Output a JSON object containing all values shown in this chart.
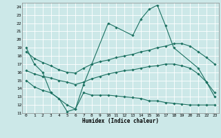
{
  "xlabel": "Humidex (Indice chaleur)",
  "bg_color": "#cce8e8",
  "line_color": "#1a7060",
  "grid_color": "#ffffff",
  "xlim": [
    -0.5,
    23.5
  ],
  "ylim": [
    11,
    24.5
  ],
  "yticks": [
    11,
    12,
    13,
    14,
    15,
    16,
    17,
    18,
    19,
    20,
    21,
    22,
    23,
    24
  ],
  "xticks": [
    0,
    1,
    2,
    3,
    4,
    5,
    6,
    7,
    8,
    9,
    10,
    11,
    12,
    13,
    14,
    15,
    16,
    17,
    18,
    19,
    20,
    21,
    22,
    23
  ],
  "lines": [
    {
      "x": [
        0,
        1,
        2,
        3,
        5,
        6,
        7,
        10,
        11,
        13,
        14,
        15,
        16,
        17,
        18,
        21,
        22,
        23
      ],
      "y": [
        19,
        17,
        16,
        13.5,
        12,
        11.5,
        14.5,
        22,
        21.5,
        20.5,
        22.5,
        23.7,
        24.2,
        21.7,
        19.0,
        16.5,
        14.8,
        13.0
      ]
    },
    {
      "x": [
        0,
        1,
        2,
        3,
        4,
        5,
        6,
        7,
        8,
        9,
        10,
        11,
        12,
        13,
        14,
        15,
        16,
        17,
        18,
        19,
        20,
        21,
        22,
        23
      ],
      "y": [
        18.5,
        17.7,
        17.2,
        16.8,
        16.3,
        16.0,
        15.9,
        16.5,
        17.0,
        17.3,
        17.5,
        17.8,
        18.0,
        18.2,
        18.5,
        18.7,
        19.0,
        19.2,
        19.5,
        19.5,
        19.2,
        18.5,
        17.8,
        17.0
      ]
    },
    {
      "x": [
        0,
        1,
        2,
        3,
        4,
        5,
        6,
        7,
        8,
        9,
        10,
        11,
        12,
        13,
        14,
        15,
        16,
        17,
        18,
        19,
        20,
        21,
        22,
        23
      ],
      "y": [
        16.2,
        15.8,
        15.5,
        15.3,
        15.0,
        14.8,
        14.5,
        14.8,
        15.2,
        15.5,
        15.8,
        16.0,
        16.2,
        16.3,
        16.5,
        16.7,
        16.8,
        17.0,
        17.0,
        16.8,
        16.5,
        15.8,
        14.8,
        13.5
      ]
    },
    {
      "x": [
        0,
        1,
        2,
        3,
        4,
        5,
        6,
        7,
        8,
        9,
        10,
        11,
        12,
        13,
        14,
        15,
        16,
        17,
        18,
        19,
        20,
        21,
        22,
        23
      ],
      "y": [
        15.0,
        14.2,
        13.8,
        13.5,
        12.8,
        11.2,
        11.5,
        13.5,
        13.2,
        13.2,
        13.2,
        13.1,
        13.0,
        12.9,
        12.8,
        12.5,
        12.5,
        12.3,
        12.2,
        12.1,
        12.0,
        12.0,
        12.0,
        12.0
      ]
    }
  ]
}
